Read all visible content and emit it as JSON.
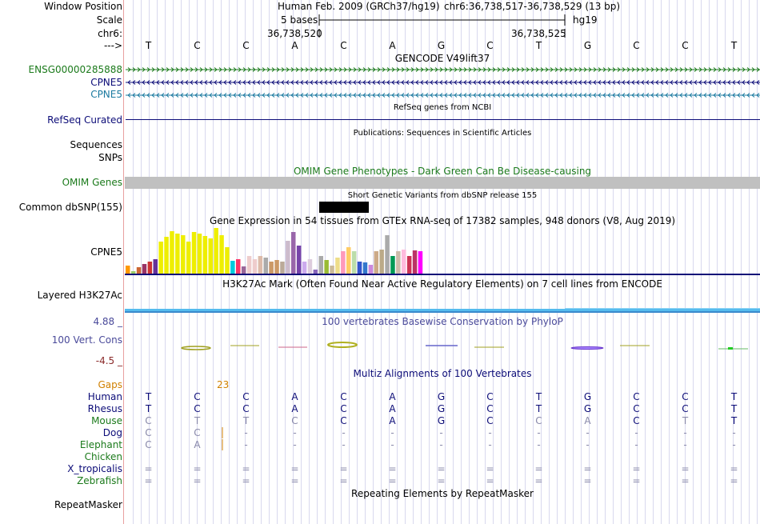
{
  "header": {
    "window_position_label": "Window Position",
    "assembly_text": "Human Feb. 2009 (GRCh37/hg19)",
    "position_text": "chr6:36,738,517-36,738,529 (13 bp)",
    "scale_label": "Scale",
    "scale_text": "5 bases",
    "scale_db": "hg19",
    "chrom_label": "chr6:",
    "coord_left": "36,738,520",
    "coord_right": "36,738,525",
    "strand_label": "--->"
  },
  "bases": [
    "T",
    "C",
    "C",
    "A",
    "C",
    "A",
    "G",
    "C",
    "T",
    "G",
    "C",
    "C",
    "T"
  ],
  "tracks": {
    "gencode": {
      "title": "GENCODE V49lift37",
      "rows": [
        {
          "label": "ENSG00000285888",
          "color": "#1b7a1b",
          "direction": "forward"
        },
        {
          "label": "CPNE5",
          "color": "#0c0c78",
          "direction": "reverse"
        },
        {
          "label": "CPNE5",
          "color": "#1b7aa0",
          "direction": "reverse"
        }
      ]
    },
    "refseq": {
      "title": "RefSeq genes from NCBI",
      "label": "RefSeq Curated",
      "color": "#0c0c78"
    },
    "publications": {
      "title": "Publications: Sequences in Scientific Articles",
      "labels": [
        "Sequences",
        "SNPs"
      ]
    },
    "omim": {
      "title": "OMIM Gene Phenotypes - Dark Green Can Be Disease-causing",
      "label": "OMIM Genes",
      "color": "#1b7a1b"
    },
    "dbsnp": {
      "title": "Short Genetic Variants from dbSNP release 155",
      "label": "Common dbSNP(155)"
    },
    "gtex": {
      "title": "Gene Expression in 54 tissues from GTEx RNA-seq of 17382 samples, 948 donors (V8, Aug 2019)",
      "label": "CPNE5",
      "heights": [
        10,
        3,
        8,
        12,
        15,
        18,
        40,
        46,
        53,
        50,
        48,
        40,
        52,
        50,
        47,
        44,
        57,
        48,
        33,
        16,
        18,
        9,
        22,
        18,
        22,
        20,
        15,
        17,
        15,
        41,
        52,
        35,
        15,
        18,
        5,
        22,
        17,
        10,
        20,
        28,
        33,
        28,
        15,
        14,
        11,
        28,
        30,
        48,
        22,
        28,
        30,
        22,
        29,
        28
      ],
      "colors": [
        "#ff9900",
        "#99cc66",
        "#cc6633",
        "#993366",
        "#cc3333",
        "#663399",
        "#eeee00",
        "#eeee00",
        "#eeee00",
        "#eeee00",
        "#eeee00",
        "#eeee00",
        "#eeee00",
        "#eeee00",
        "#eeee00",
        "#eeee00",
        "#eeee00",
        "#eeee00",
        "#eeee00",
        "#00ccdd",
        "#ff3366",
        "#996699",
        "#eecccc",
        "#eecccc",
        "#ddbbaa",
        "#aaaaaa",
        "#cc9966",
        "#cc9966",
        "#bbaa99",
        "#ccbbcc",
        "#9966aa",
        "#7744aa",
        "#ccaaee",
        "#ddccdd",
        "#8866bb",
        "#aaaaaa",
        "#99bb33",
        "#ccbb99",
        "#eedd88",
        "#ff99bb",
        "#ffcc66",
        "#bbddaa",
        "#3355cc",
        "#3377cc",
        "#cc88dd",
        "#ccaa88",
        "#bbaa88",
        "#aaaaaa",
        "#009955",
        "#ccbbaa",
        "#ffbbdd",
        "#cc3355",
        "#bb3366",
        "#ff00ff"
      ]
    },
    "h3k27ac": {
      "title": "H3K27Ac Mark (Often Found Near Active Regulatory Elements) on 7 cell lines from ENCODE",
      "label": "Layered H3K27Ac"
    },
    "phylop": {
      "title": "100 vertebrates Basewise Conservation by PhyloP",
      "label": "100 Vert. Cons",
      "max_label": "4.88 _",
      "min_label": "-4.5 _",
      "color": "#4a4a9a",
      "min_color": "#8a2a2a"
    },
    "multiz": {
      "title": "Multiz Alignments of 100 Vertebrates",
      "gaps_label": "Gaps",
      "gaps_value": "23",
      "species": [
        {
          "name": "Human",
          "color": "#0c0c78",
          "bases": [
            "T",
            "C",
            "C",
            "A",
            "C",
            "A",
            "G",
            "C",
            "T",
            "G",
            "C",
            "C",
            "T"
          ],
          "base_color": "#0c0c78"
        },
        {
          "name": "Rhesus",
          "color": "#0c0c78",
          "bases": [
            "T",
            "C",
            "C",
            "A",
            "C",
            "A",
            "G",
            "C",
            "T",
            "G",
            "C",
            "C",
            "T"
          ],
          "base_color": "#0c0c78"
        },
        {
          "name": "Mouse",
          "color": "#1b7a1b",
          "bases": [
            "C",
            "T",
            "T",
            "C",
            "C",
            "A",
            "G",
            "C",
            "C",
            "A",
            "C",
            "T",
            "T"
          ],
          "base_color": "#0c0c78"
        },
        {
          "name": "Dog",
          "color": "#0c0c78",
          "bases": [
            "C",
            "C",
            "-",
            "-",
            "-",
            "-",
            "-",
            "-",
            "-",
            "-",
            "-",
            "-",
            "-"
          ],
          "base_color": "#8888aa"
        },
        {
          "name": "Elephant",
          "color": "#1b7a1b",
          "bases": [
            "C",
            "A",
            "-",
            "-",
            "-",
            "-",
            "-",
            "-",
            "-",
            "-",
            "-",
            "-",
            "-"
          ],
          "base_color": "#8888aa"
        },
        {
          "name": "Chicken",
          "color": "#1b7a1b",
          "bases": [],
          "base_color": "#8888aa"
        },
        {
          "name": "X_tropicalis",
          "color": "#0c0c78",
          "bases": [
            "=",
            "=",
            "=",
            "=",
            "=",
            "=",
            "=",
            "=",
            "=",
            "=",
            "=",
            "=",
            "="
          ],
          "base_color": "#8888aa"
        },
        {
          "name": "Zebrafish",
          "color": "#1b7a1b",
          "bases": [
            "=",
            "=",
            "=",
            "=",
            "=",
            "=",
            "=",
            "=",
            "=",
            "=",
            "=",
            "=",
            "="
          ],
          "base_color": "#8888aa"
        }
      ]
    },
    "repeatmasker": {
      "title": "Repeating Elements by RepeatMasker",
      "label": "RepeatMasker"
    }
  }
}
